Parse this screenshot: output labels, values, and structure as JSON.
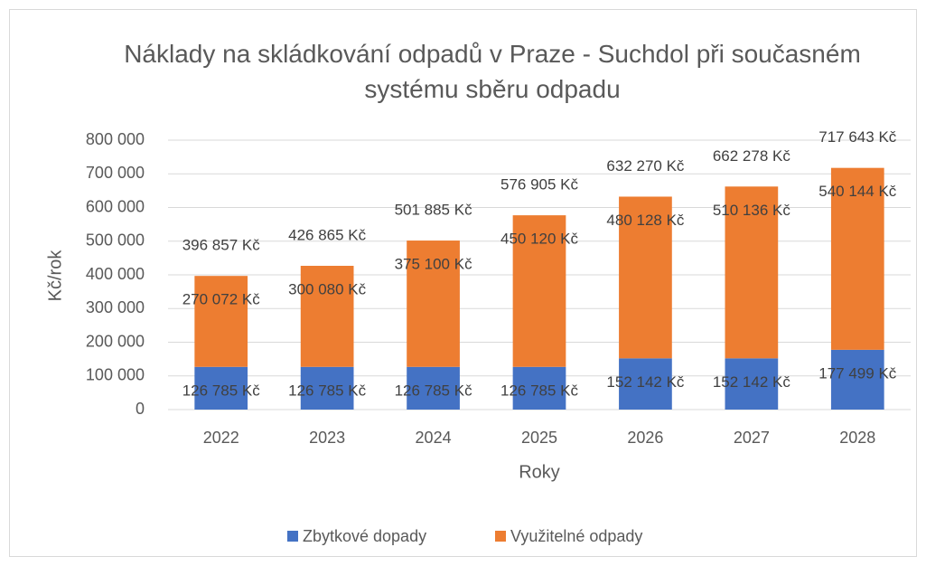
{
  "chart_data": {
    "type": "stacked-bar",
    "title": "Náklady na skládkování odpadů v Praze - Suchdol při současném systému sběru odpadu",
    "xlabel": "Roky",
    "ylabel": "Kč/rok",
    "categories": [
      "2022",
      "2023",
      "2024",
      "2025",
      "2026",
      "2027",
      "2028"
    ],
    "series": [
      {
        "name": "Zbytkové dopady",
        "color": "#4472c4",
        "values": [
          126785,
          126785,
          126785,
          126785,
          152142,
          152142,
          177499
        ],
        "value_labels": [
          "126 785 Kč",
          "126 785 Kč",
          "126 785 Kč",
          "126 785 Kč",
          "152 142 Kč",
          "152 142 Kč",
          "177 499 Kč"
        ]
      },
      {
        "name": "Využitelné odpady",
        "color": "#ed7d31",
        "values": [
          270072,
          300080,
          375100,
          450120,
          480128,
          510136,
          540144
        ],
        "value_labels": [
          "270 072 Kč",
          "300 080 Kč",
          "375 100 Kč",
          "450 120 Kč",
          "480 128 Kč",
          "510 136 Kč",
          "540 144 Kč"
        ]
      }
    ],
    "totals": [
      396857,
      426865,
      501885,
      576905,
      632270,
      662278,
      717643
    ],
    "total_labels": [
      "396 857 Kč",
      "426 865 Kč",
      "501 885 Kč",
      "576 905 Kč",
      "632 270 Kč",
      "662 278 Kč",
      "717 643 Kč"
    ],
    "ylim": [
      0,
      800000
    ],
    "yticks": [
      0,
      {
        "value": 100000,
        "label": "100 000"
      },
      {
        "value": 200000,
        "label": "200 000"
      },
      {
        "value": 300000,
        "label": "300 000"
      },
      {
        "value": 400000,
        "label": "400 000"
      },
      {
        "value": 500000,
        "label": "500 000"
      },
      {
        "value": 600000,
        "label": "600 000"
      },
      {
        "value": 700000,
        "label": "700 000"
      },
      {
        "value": 800000,
        "label": "800 000"
      }
    ],
    "grid": true,
    "legend": "bottom"
  }
}
